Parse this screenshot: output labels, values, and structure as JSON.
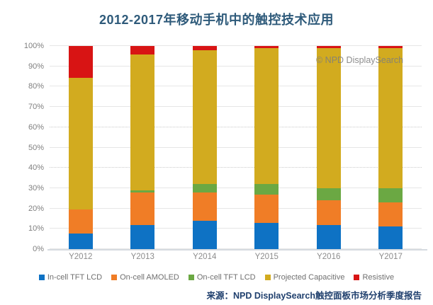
{
  "title": "2012-2017年移动手机中的触控技术应用",
  "watermark": "© NPD DisplaySearch",
  "source": "来源：NPD DisplaySearch触控面板市场分析季度报告",
  "chart_data": {
    "type": "bar",
    "stacked": true,
    "percent": true,
    "title": "2012-2017年移动手机中的触控技术应用",
    "categories": [
      "Y2012",
      "Y2013",
      "Y2014",
      "Y2015",
      "Y2016",
      "Y2017"
    ],
    "series": [
      {
        "name": "In-cell TFT LCD",
        "color": "#0e72c4",
        "values": [
          7.5,
          12,
          14,
          13,
          12,
          11
        ]
      },
      {
        "name": "On-cell AMOLED",
        "color": "#f07d26",
        "values": [
          12,
          16,
          14,
          14,
          12,
          12
        ]
      },
      {
        "name": "On-cell TFT LCD",
        "color": "#6ba843",
        "values": [
          0,
          1,
          4,
          5,
          6,
          7
        ]
      },
      {
        "name": "Projected Capacitive",
        "color": "#d2ab1f",
        "values": [
          65,
          67,
          66,
          67,
          69,
          69
        ]
      },
      {
        "name": "Resistive",
        "color": "#d81414",
        "values": [
          15.5,
          4,
          2,
          1,
          1,
          1
        ]
      }
    ],
    "xlabel": "",
    "ylabel": "",
    "ylim": [
      0,
      100
    ],
    "yticks": [
      "0%",
      "10%",
      "20%",
      "30%",
      "40%",
      "50%",
      "60%",
      "70%",
      "80%",
      "90%",
      "100%"
    ],
    "dotted_gridlines": [
      40,
      60
    ],
    "grid": true,
    "legend_position": "bottom",
    "axis_tick_color": "#7f7f7f",
    "legend_text_color": "#6f6f6f"
  }
}
